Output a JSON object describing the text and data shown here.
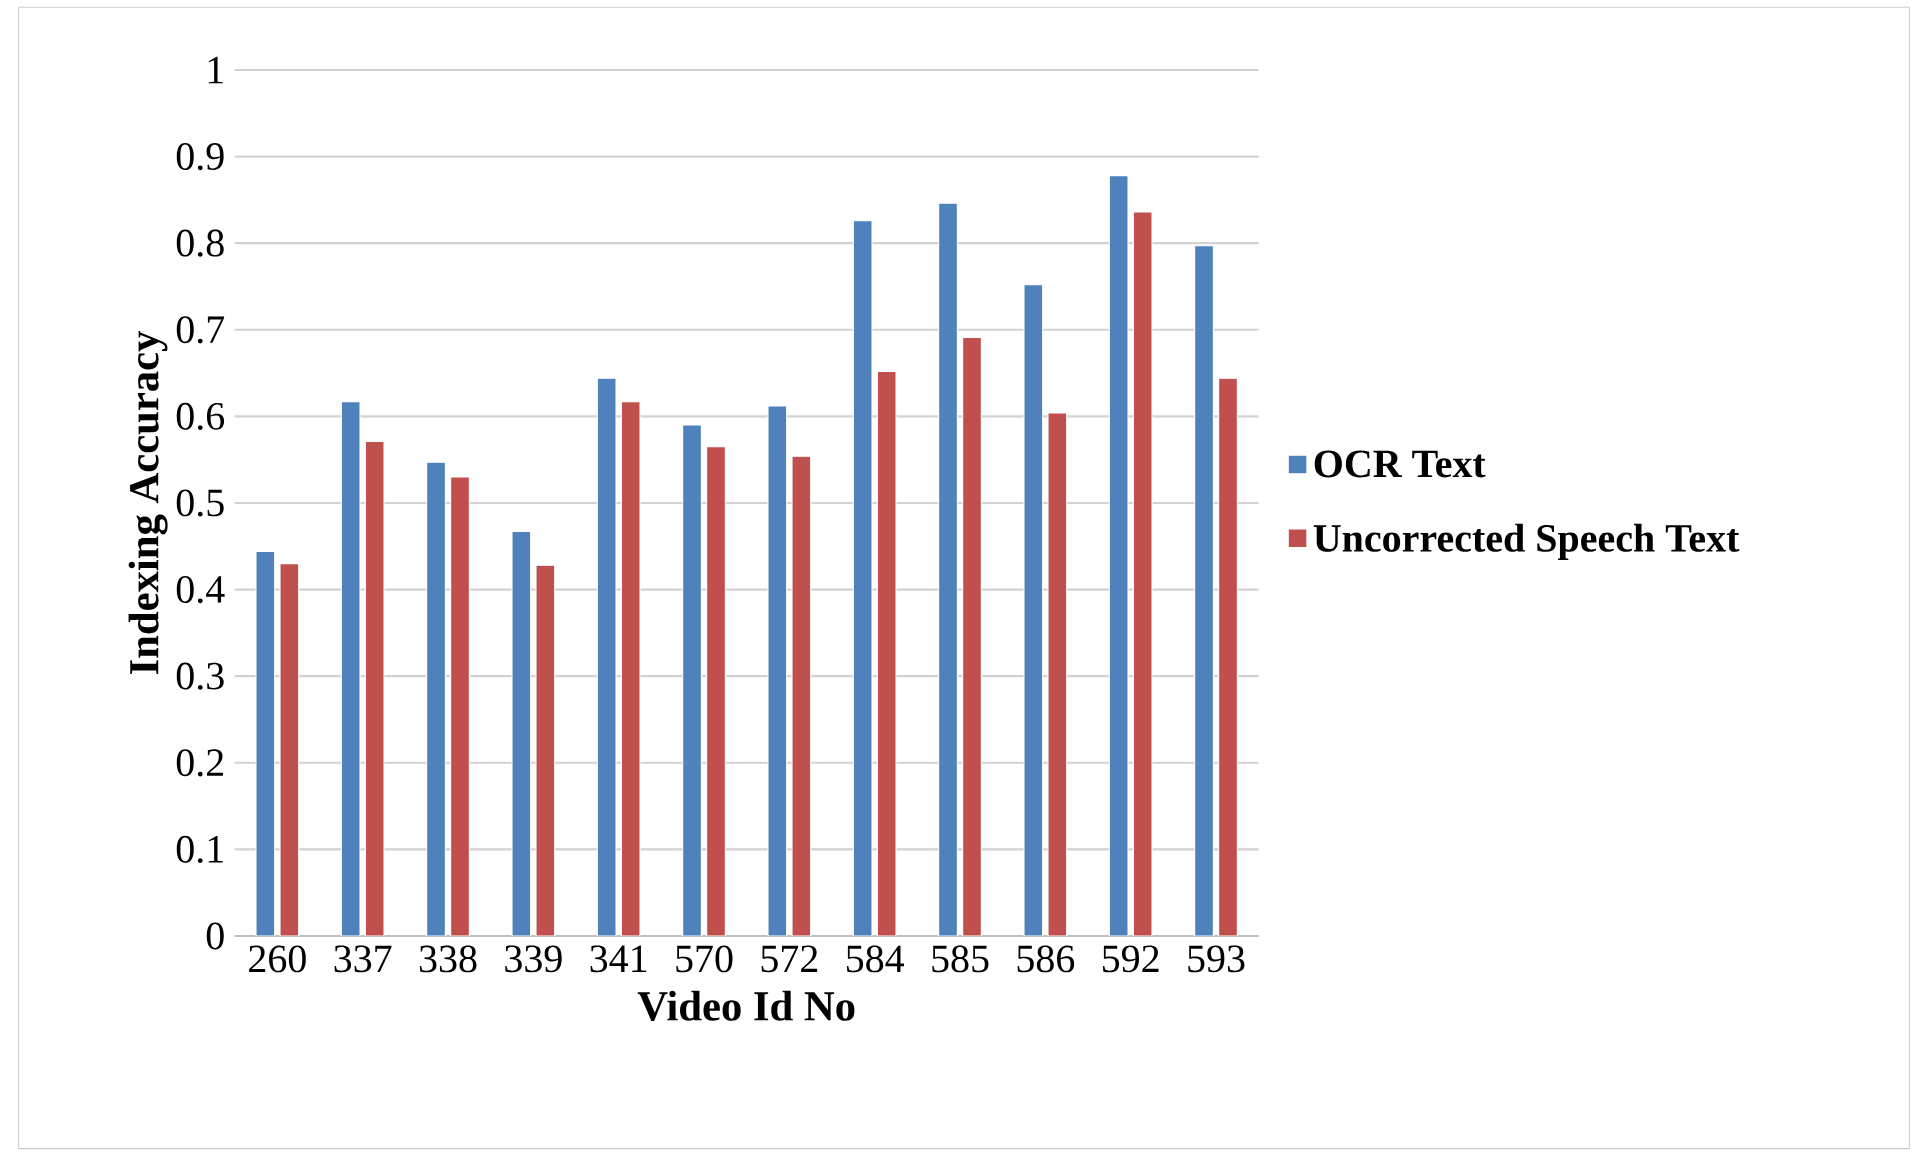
{
  "chart_data": {
    "type": "bar",
    "xlabel": "Video Id No",
    "ylabel": "Indexing Accuracy",
    "categories": [
      "260",
      "337",
      "338",
      "339",
      "341",
      "570",
      "572",
      "584",
      "585",
      "586",
      "592",
      "593"
    ],
    "series": [
      {
        "name": "OCR Text",
        "color": "#4f81bd",
        "values": [
          0.444,
          0.617,
          0.547,
          0.467,
          0.644,
          0.59,
          0.612,
          0.826,
          0.846,
          0.752,
          0.878,
          0.797
        ]
      },
      {
        "name": "Uncorrected Speech Text",
        "color": "#c0504d",
        "values": [
          0.43,
          0.571,
          0.53,
          0.428,
          0.617,
          0.565,
          0.554,
          0.652,
          0.691,
          0.604,
          0.836,
          0.644
        ]
      }
    ],
    "ylim": [
      0,
      1
    ],
    "yticks": [
      0,
      0.1,
      0.2,
      0.3,
      0.4,
      0.5,
      0.6,
      0.7,
      0.8,
      0.9,
      1
    ],
    "grid": "y",
    "legend": "right"
  }
}
